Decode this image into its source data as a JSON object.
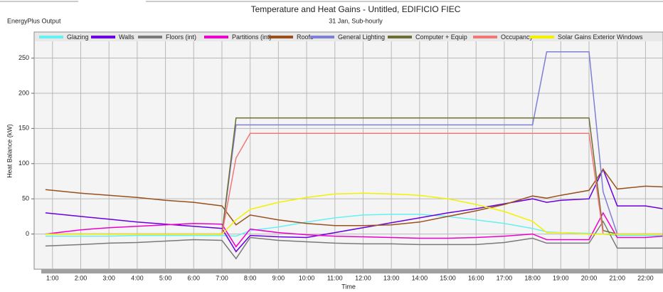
{
  "chart_data": {
    "type": "line",
    "title": "Temperature and Heat Gains - Untitled, EDIFICIO FIEC",
    "subtitle": "31 Jan, Sub-hourly",
    "source_label": "EnergyPlus Output",
    "ylabel": "Heat Balance (kW)",
    "xlabel": "Time",
    "grid": true,
    "legend": "top",
    "xlim": [
      0.35,
      22.62
    ],
    "ylim": [
      -50,
      287
    ],
    "yticks": [
      0,
      50,
      100,
      150,
      200,
      250
    ],
    "xticks": [
      {
        "value": 1,
        "label": "1:00"
      },
      {
        "value": 2,
        "label": "2:00"
      },
      {
        "value": 3,
        "label": "3:00"
      },
      {
        "value": 4,
        "label": "4:00"
      },
      {
        "value": 5,
        "label": "5:00"
      },
      {
        "value": 6,
        "label": "6:00"
      },
      {
        "value": 7,
        "label": "7:00"
      },
      {
        "value": 8,
        "label": "8:00"
      },
      {
        "value": 9,
        "label": "9:00"
      },
      {
        "value": 10,
        "label": "10:00"
      },
      {
        "value": 11,
        "label": "11:00"
      },
      {
        "value": 12,
        "label": "12:00"
      },
      {
        "value": 13,
        "label": "13:00"
      },
      {
        "value": 14,
        "label": "14:00"
      },
      {
        "value": 15,
        "label": "15:00"
      },
      {
        "value": 16,
        "label": "16:00"
      },
      {
        "value": 17,
        "label": "17:00"
      },
      {
        "value": 18,
        "label": "18:00"
      },
      {
        "value": 19,
        "label": "19:00"
      },
      {
        "value": 20,
        "label": "20:00"
      },
      {
        "value": 21,
        "label": "21:00"
      },
      {
        "value": 22,
        "label": "22:00"
      }
    ],
    "x": [
      0.75,
      2,
      3,
      4,
      5,
      6,
      7,
      7.5,
      8,
      9,
      10,
      11,
      12,
      13,
      14,
      15,
      16,
      17,
      18,
      18.5,
      19,
      20,
      20.5,
      21,
      22,
      22.6
    ],
    "series": [
      {
        "name": "Glazing",
        "color": "#66f0f0",
        "values": [
          -3,
          -3,
          -3,
          -2,
          -2,
          -2,
          -2,
          -3,
          5,
          10,
          17,
          23,
          27,
          28,
          28,
          25,
          20,
          15,
          8,
          3,
          2,
          1,
          0,
          -2,
          -2,
          -2
        ]
      },
      {
        "name": "Walls",
        "color": "#6a00e0",
        "values": [
          30,
          25,
          21,
          17,
          14,
          11,
          8,
          -25,
          -2,
          -4,
          -5,
          2,
          9,
          16,
          23,
          30,
          36,
          43,
          50,
          45,
          48,
          50,
          92,
          40,
          40,
          36
        ]
      },
      {
        "name": "Floors (int)",
        "color": "#7a7a7a",
        "values": [
          -17,
          -15,
          -13,
          -12,
          -10,
          -8,
          -9,
          -35,
          -5,
          -9,
          -11,
          -13,
          -14,
          -14,
          -15,
          -15,
          -15,
          -12,
          -6,
          -13,
          -13,
          -13,
          18,
          -20,
          -20,
          -20
        ]
      },
      {
        "name": "Partitions (int)",
        "color": "#ee00cc",
        "values": [
          0,
          6,
          9,
          11,
          13,
          15,
          14,
          -18,
          7,
          2,
          -1,
          -3,
          -4,
          -5,
          -6,
          -6,
          -5,
          -3,
          0,
          -8,
          -8,
          -8,
          30,
          -5,
          -5,
          -3
        ]
      },
      {
        "name": "Roofs",
        "color": "#99501e",
        "values": [
          63,
          58,
          55,
          52,
          48,
          45,
          40,
          13,
          27,
          20,
          15,
          12,
          12,
          13,
          17,
          25,
          33,
          42,
          54,
          51,
          55,
          62,
          92,
          64,
          68,
          67
        ]
      },
      {
        "name": "General Lighting",
        "color": "#7f7fd4",
        "values": [
          0,
          0,
          0,
          0,
          0,
          0,
          0,
          155,
          155,
          155,
          155,
          155,
          155,
          155,
          155,
          155,
          155,
          155,
          155,
          259,
          259,
          259,
          60,
          0,
          0,
          0
        ]
      },
      {
        "name": "Computer + Equip",
        "color": "#6e6e34",
        "values": [
          0,
          0,
          0,
          0,
          0,
          0,
          0,
          165,
          165,
          165,
          165,
          165,
          165,
          165,
          165,
          165,
          165,
          165,
          165,
          165,
          165,
          165,
          5,
          0,
          0,
          0
        ]
      },
      {
        "name": "Occupancy",
        "color": "#f07878",
        "values": [
          0,
          0,
          0,
          0,
          0,
          0,
          0,
          108,
          143,
          143,
          143,
          143,
          143,
          143,
          143,
          143,
          143,
          143,
          143,
          143,
          143,
          143,
          0,
          0,
          0,
          0
        ]
      },
      {
        "name": "Solar Gains Exterior Windows",
        "color": "#f2f200",
        "values": [
          0,
          0,
          0,
          0,
          0,
          0,
          0,
          20,
          35,
          45,
          52,
          57,
          58,
          57,
          55,
          50,
          42,
          32,
          18,
          2,
          2,
          0,
          0,
          0,
          0,
          0
        ]
      }
    ]
  }
}
